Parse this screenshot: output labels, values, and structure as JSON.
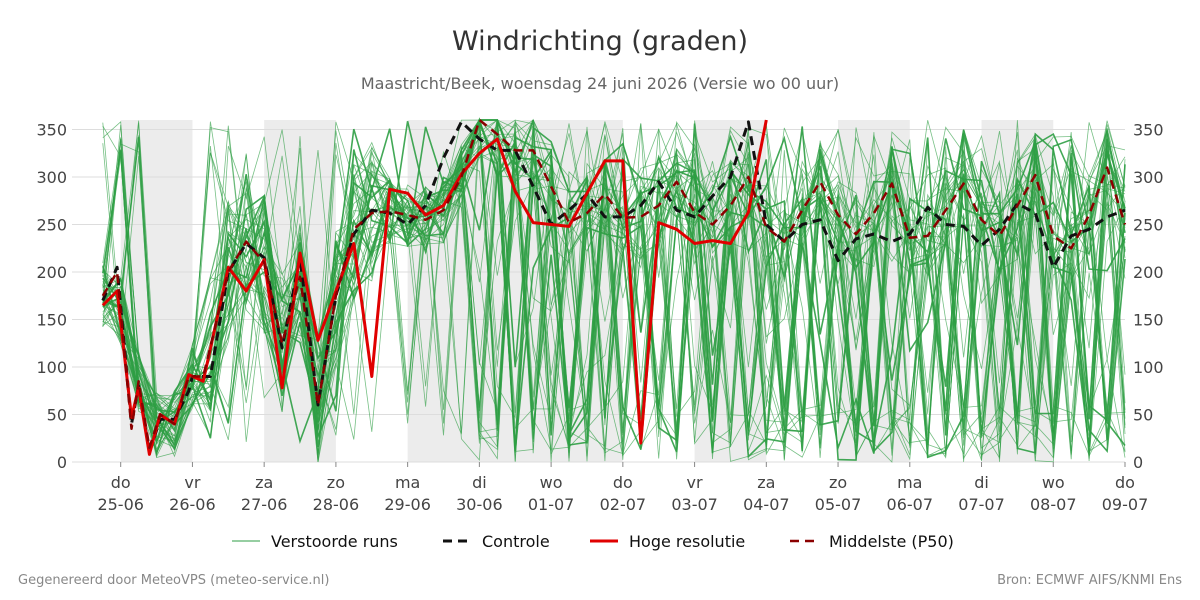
{
  "title": "Windrichting (graden)",
  "subtitle": "Maastricht/Beek, woensdag 24 juni 2026 (Versie wo 00 uur)",
  "footer_left": "Gegenereerd door MeteoVPS (meteo-service.nl)",
  "footer_right": "Bron: ECMWF AIFS/KNMI Ens",
  "colors": {
    "ensemble": "#2e9e44",
    "control": "#111111",
    "high_res": "#e00000",
    "median": "#8b0000",
    "night_band": "#ececec",
    "grid": "#dddddd"
  },
  "chart_data": {
    "type": "line",
    "title": "Windrichting (graden)",
    "ylim": [
      0,
      360
    ],
    "y_ticks": [
      0,
      50,
      100,
      150,
      200,
      250,
      300,
      350
    ],
    "x_unit": "days since 24-06-2026 00:00",
    "xlim": [
      0.6,
      15.0
    ],
    "x_ticks": [
      {
        "x": 1,
        "day": "do",
        "date": "25-06"
      },
      {
        "x": 2,
        "day": "vr",
        "date": "26-06"
      },
      {
        "x": 3,
        "day": "za",
        "date": "27-06"
      },
      {
        "x": 4,
        "day": "zo",
        "date": "28-06"
      },
      {
        "x": 5,
        "day": "ma",
        "date": "29-06"
      },
      {
        "x": 6,
        "day": "di",
        "date": "30-06"
      },
      {
        "x": 7,
        "day": "wo",
        "date": "01-07"
      },
      {
        "x": 8,
        "day": "do",
        "date": "02-07"
      },
      {
        "x": 9,
        "day": "vr",
        "date": "03-07"
      },
      {
        "x": 10,
        "day": "za",
        "date": "04-07"
      },
      {
        "x": 11,
        "day": "zo",
        "date": "05-07"
      },
      {
        "x": 12,
        "day": "ma",
        "date": "06-07"
      },
      {
        "x": 13,
        "day": "di",
        "date": "07-07"
      },
      {
        "x": 14,
        "day": "wo",
        "date": "08-07"
      },
      {
        "x": 15,
        "day": "do",
        "date": "09-07"
      }
    ],
    "shaded_bands": [
      [
        1,
        2
      ],
      [
        3,
        4
      ],
      [
        5,
        8
      ],
      [
        9,
        10
      ],
      [
        11,
        12
      ],
      [
        13,
        14
      ]
    ],
    "grid": true,
    "legend_position": "bottom",
    "legend": [
      {
        "label": "Verstoorde runs",
        "style": "ensemble"
      },
      {
        "label": "Controle",
        "style": "control"
      },
      {
        "label": "Hoge resolutie",
        "style": "high_res"
      },
      {
        "label": "Middelste (P50)",
        "style": "median"
      }
    ],
    "control": {
      "name": "Controle",
      "x": [
        0.75,
        0.95,
        1.15,
        1.25,
        1.4,
        1.55,
        1.75,
        1.95,
        2.0,
        2.25,
        2.5,
        2.75,
        3.0,
        3.25,
        3.5,
        3.75,
        4.0,
        4.25,
        4.5,
        4.75,
        5.0,
        5.25,
        5.5,
        5.75,
        6.0,
        6.25,
        6.5,
        6.75,
        7.0,
        7.25,
        7.5,
        7.75,
        8.0,
        8.25,
        8.5,
        8.75,
        9.0,
        9.25,
        9.5,
        9.75,
        10.0,
        10.25,
        10.5,
        10.75,
        11.0,
        11.25,
        11.5,
        11.75,
        12.0,
        12.25,
        12.5,
        12.75,
        13.0,
        13.25,
        13.5,
        13.75,
        14.0,
        14.25,
        14.5,
        14.75,
        15.0
      ],
      "y": [
        170,
        205,
        40,
        80,
        10,
        45,
        45,
        75,
        90,
        90,
        200,
        230,
        215,
        120,
        215,
        60,
        175,
        240,
        265,
        262,
        250,
        270,
        320,
        358,
        340,
        328,
        328,
        290,
        250,
        265,
        282,
        258,
        258,
        270,
        295,
        265,
        258,
        280,
        300,
        358,
        250,
        232,
        250,
        255,
        212,
        235,
        240,
        232,
        240,
        268,
        250,
        248,
        228,
        245,
        272,
        262,
        205,
        238,
        245,
        258,
        265
      ]
    },
    "high_res": {
      "name": "Hoge resolutie",
      "x": [
        0.75,
        0.95,
        1.15,
        1.25,
        1.4,
        1.55,
        1.75,
        1.95,
        2.15,
        2.5,
        2.75,
        3.0,
        3.25,
        3.5,
        3.75,
        4.0,
        4.25,
        4.5,
        4.75,
        5.0,
        5.25,
        5.5,
        5.75,
        6.0,
        6.25,
        6.5,
        6.75,
        7.0,
        7.25,
        7.5,
        7.75,
        8.0,
        8.25,
        8.5,
        8.75,
        9.0,
        9.25,
        9.5,
        9.75,
        10.0
      ],
      "y": [
        165,
        180,
        47,
        78,
        8,
        50,
        40,
        92,
        85,
        205,
        180,
        213,
        78,
        220,
        128,
        180,
        230,
        90,
        287,
        283,
        260,
        270,
        303,
        325,
        340,
        285,
        252,
        250,
        248,
        283,
        317,
        317,
        20,
        252,
        245,
        230,
        233,
        230,
        263,
        360
      ]
    },
    "median": {
      "name": "Middelste (P50)",
      "x": [
        0.75,
        0.95,
        1.15,
        1.25,
        1.4,
        1.55,
        1.75,
        1.95,
        2.15,
        2.5,
        2.75,
        3.0,
        3.25,
        3.5,
        3.75,
        4.0,
        4.25,
        4.5,
        4.75,
        5.0,
        5.25,
        5.5,
        5.75,
        6.0,
        6.25,
        6.5,
        6.75,
        7.0,
        7.25,
        7.5,
        7.75,
        8.0,
        8.25,
        8.5,
        8.75,
        9.0,
        9.25,
        9.5,
        9.75,
        10.0,
        10.25,
        10.5,
        10.75,
        11.0,
        11.25,
        11.5,
        11.75,
        12.0,
        12.25,
        12.5,
        12.75,
        13.0,
        13.25,
        13.5,
        13.75,
        14.0,
        14.25,
        14.5,
        14.75,
        15.0
      ],
      "y": [
        175,
        200,
        35,
        85,
        15,
        50,
        40,
        90,
        90,
        200,
        232,
        210,
        125,
        195,
        60,
        175,
        245,
        262,
        264,
        260,
        255,
        265,
        300,
        360,
        345,
        328,
        328,
        290,
        252,
        262,
        282,
        257,
        258,
        270,
        295,
        263,
        250,
        270,
        300,
        247,
        232,
        265,
        295,
        260,
        240,
        262,
        293,
        236,
        238,
        265,
        293,
        255,
        238,
        270,
        302,
        238,
        225,
        260,
        310,
        250
      ]
    }
  }
}
